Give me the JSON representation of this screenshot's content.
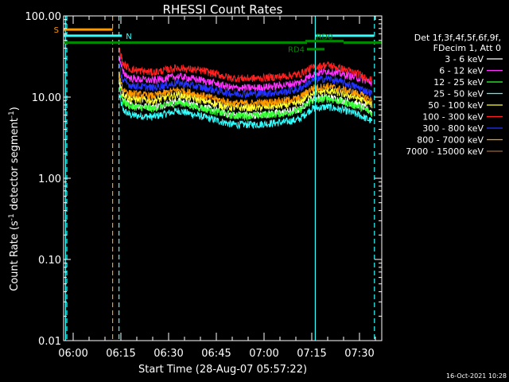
{
  "chart_data": {
    "type": "line",
    "title": "RHESSI Count Rates",
    "xlabel": "Start Time (28-Aug-07 05:57:22)",
    "ylabel_main": "Count Rate (s",
    "ylabel_sup": "-1",
    "ylabel_rest": " detector segment",
    "ylabel_sup2": "-1",
    "ylabel_close": ")",
    "y_scale": "log",
    "ylim": [
      0.01,
      100
    ],
    "xlim_minutes": [
      -3,
      97
    ],
    "y_ticks": [
      {
        "value": 100,
        "label": "100.00"
      },
      {
        "value": 10,
        "label": "10.00"
      },
      {
        "value": 1,
        "label": "1.00"
      },
      {
        "value": 0.1,
        "label": "0.10"
      },
      {
        "value": 0.01,
        "label": "0.01"
      }
    ],
    "x_ticks": [
      {
        "value": 0,
        "label": "06:00"
      },
      {
        "value": 15,
        "label": "06:15"
      },
      {
        "value": 30,
        "label": "06:30"
      },
      {
        "value": 45,
        "label": "06:45"
      },
      {
        "value": 60,
        "label": "07:00"
      },
      {
        "value": 75,
        "label": "07:15"
      },
      {
        "value": 90,
        "label": "07:30"
      }
    ],
    "legend_header": [
      "Det 1f,3f,4f,5f,6f,9f,",
      "FDecim 1, Att 0"
    ],
    "series": [
      {
        "name": "3 - 6 keV",
        "color": "#ffffff",
        "points": [
          [
            14.4,
            10
          ],
          [
            18,
            8
          ],
          [
            25,
            7.5
          ],
          [
            33,
            9
          ],
          [
            41,
            7.5
          ],
          [
            50,
            6
          ],
          [
            58,
            6
          ],
          [
            66,
            6.5
          ],
          [
            71,
            7
          ],
          [
            75,
            9.5
          ],
          [
            80,
            10
          ],
          [
            85,
            9
          ],
          [
            90,
            8
          ],
          [
            94,
            6.5
          ]
        ]
      },
      {
        "name": "6 - 12 keV",
        "color": "#ff33ff",
        "points": [
          [
            14.4,
            22
          ],
          [
            18,
            17
          ],
          [
            25,
            16
          ],
          [
            33,
            18
          ],
          [
            41,
            16
          ],
          [
            50,
            13
          ],
          [
            58,
            13
          ],
          [
            66,
            14
          ],
          [
            71,
            15
          ],
          [
            75,
            19
          ],
          [
            80,
            21
          ],
          [
            85,
            19
          ],
          [
            90,
            17
          ],
          [
            94,
            15
          ]
        ]
      },
      {
        "name": "12 - 25 keV",
        "color": "#33ff33",
        "points": [
          [
            14.4,
            9.5
          ],
          [
            18,
            7.7
          ],
          [
            25,
            7.2
          ],
          [
            33,
            8.6
          ],
          [
            41,
            7.2
          ],
          [
            50,
            5.9
          ],
          [
            58,
            5.9
          ],
          [
            66,
            6.3
          ],
          [
            71,
            6.8
          ],
          [
            75,
            9
          ],
          [
            80,
            9.6
          ],
          [
            85,
            8.7
          ],
          [
            90,
            7.6
          ],
          [
            94,
            6.3
          ]
        ]
      },
      {
        "name": "25 - 50 keV",
        "color": "#33ffff",
        "points": [
          [
            14.4,
            7.5
          ],
          [
            18,
            6
          ],
          [
            25,
            5.7
          ],
          [
            33,
            6.8
          ],
          [
            41,
            5.7
          ],
          [
            50,
            4.6
          ],
          [
            58,
            4.6
          ],
          [
            66,
            4.9
          ],
          [
            71,
            5.3
          ],
          [
            75,
            7.2
          ],
          [
            80,
            7.6
          ],
          [
            85,
            6.9
          ],
          [
            90,
            6
          ],
          [
            94,
            5
          ]
        ]
      },
      {
        "name": "50 - 100 keV",
        "color": "#ffff33",
        "points": [
          [
            14.4,
            12
          ],
          [
            18,
            9.6
          ],
          [
            25,
            9
          ],
          [
            33,
            10.8
          ],
          [
            41,
            9
          ],
          [
            50,
            7.4
          ],
          [
            58,
            7.4
          ],
          [
            66,
            7.9
          ],
          [
            71,
            8.5
          ],
          [
            75,
            11.3
          ],
          [
            80,
            12
          ],
          [
            85,
            10.9
          ],
          [
            90,
            9.6
          ],
          [
            94,
            8
          ]
        ]
      },
      {
        "name": "100 - 300 keV",
        "color": "#ff2020",
        "points": [
          [
            14.4,
            28
          ],
          [
            18,
            22
          ],
          [
            25,
            20
          ],
          [
            33,
            23
          ],
          [
            41,
            21
          ],
          [
            50,
            17
          ],
          [
            58,
            17
          ],
          [
            66,
            18
          ],
          [
            71,
            19
          ],
          [
            75,
            23
          ],
          [
            80,
            25
          ],
          [
            85,
            22
          ],
          [
            90,
            19
          ],
          [
            94,
            16
          ]
        ]
      },
      {
        "name": "300 - 800 keV",
        "color": "#2233ff",
        "points": [
          [
            14.4,
            17
          ],
          [
            18,
            14
          ],
          [
            25,
            13
          ],
          [
            33,
            15
          ],
          [
            41,
            13
          ],
          [
            50,
            11
          ],
          [
            58,
            11
          ],
          [
            66,
            11.5
          ],
          [
            71,
            12.5
          ],
          [
            75,
            16
          ],
          [
            80,
            17
          ],
          [
            85,
            15
          ],
          [
            90,
            13
          ],
          [
            94,
            11
          ]
        ]
      },
      {
        "name": "800 - 7000 keV",
        "color": "#ff9900",
        "points": [
          [
            14.4,
            13.5
          ],
          [
            18,
            11
          ],
          [
            25,
            10.3
          ],
          [
            33,
            12.3
          ],
          [
            41,
            10.3
          ],
          [
            50,
            8.4
          ],
          [
            58,
            8.4
          ],
          [
            66,
            9
          ],
          [
            71,
            9.7
          ],
          [
            75,
            12.8
          ],
          [
            80,
            13.6
          ],
          [
            85,
            12.3
          ],
          [
            90,
            10.9
          ],
          [
            94,
            9
          ]
        ]
      },
      {
        "name": "7000 - 15000 keV",
        "color": "#996633",
        "points": []
      }
    ],
    "annotations": [
      {
        "label": "S",
        "color": "#ff9900",
        "x0": -3,
        "x1": 12.4,
        "y": 68,
        "label_side": "left"
      },
      {
        "label": "N",
        "color": "#33ffff",
        "x0": -3,
        "x1": 15.3,
        "y": 57,
        "label_side": "right"
      },
      {
        "label": "RD0",
        "color": "#008800",
        "x0": 73,
        "x1": 85,
        "y": 49,
        "label_side": "above"
      },
      {
        "label": "RD4",
        "color": "#008800",
        "x0": 73.5,
        "x1": 79,
        "y": 39,
        "label_side": "left"
      }
    ],
    "green_bars": [
      {
        "color": "#008800",
        "x0": -3,
        "x1": 73.5,
        "y": 47
      },
      {
        "color": "#008800",
        "x0": 85,
        "x1": 97,
        "y": 47
      }
    ],
    "cyan_bars": [
      {
        "color": "#33ffff",
        "x0": 76,
        "x1": 94.5,
        "y": 57
      }
    ],
    "vlines": [
      {
        "x": -2.4,
        "color": "#33ffff",
        "style": "solid"
      },
      {
        "x": -2.0,
        "color": "#33ffff",
        "style": "dashed"
      },
      {
        "x": 12.4,
        "color": "#ff9900",
        "style": "dashed"
      },
      {
        "x": 14.4,
        "color": "#33ffff",
        "style": "dashed"
      },
      {
        "x": 76.1,
        "color": "#33ffff",
        "style": "solid"
      },
      {
        "x": 94.7,
        "color": "#33ffff",
        "style": "dashed"
      }
    ],
    "footer_date": "16-Oct-2021 10:28"
  }
}
